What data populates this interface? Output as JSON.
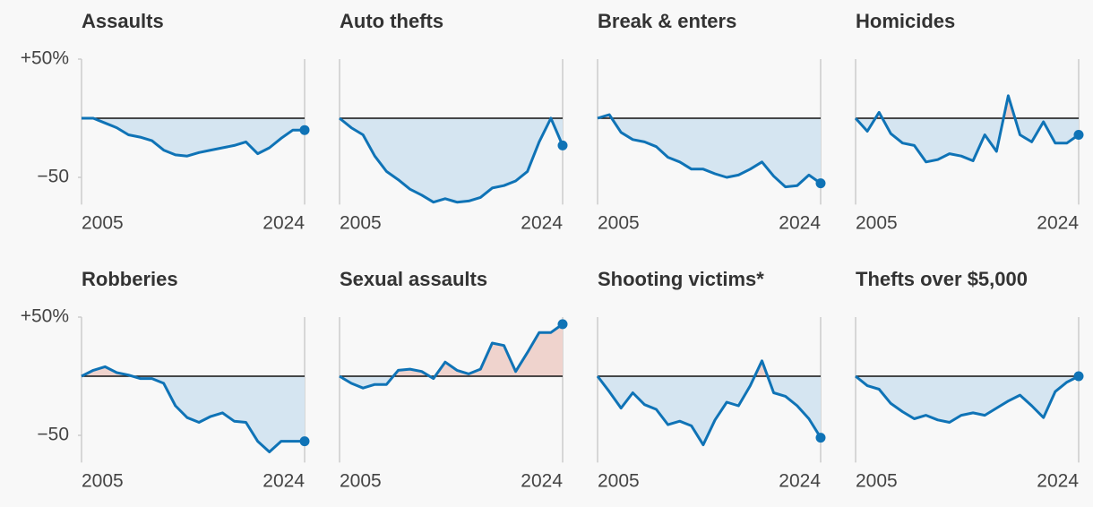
{
  "chart_data": [
    {
      "type": "line",
      "title": "Assaults",
      "x": [
        2005,
        2006,
        2007,
        2008,
        2009,
        2010,
        2011,
        2012,
        2013,
        2014,
        2015,
        2016,
        2017,
        2018,
        2019,
        2020,
        2021,
        2022,
        2023,
        2024
      ],
      "values": [
        0,
        0,
        -4,
        -8,
        -14,
        -16,
        -19,
        -27,
        -31,
        -32,
        -29,
        -27,
        -25,
        -23,
        -20,
        -30,
        -25,
        -17,
        -10,
        -10
      ],
      "color": "#0f73b6",
      "ylim": [
        -73,
        50
      ],
      "yticks": [
        {
          "value": 50,
          "label": "+50%"
        },
        {
          "value": -50,
          "label": "−50"
        }
      ],
      "xlim": [
        2005,
        2024
      ],
      "xticks": [
        2005,
        2024
      ]
    },
    {
      "type": "line",
      "title": "Auto thefts",
      "x": [
        2005,
        2006,
        2007,
        2008,
        2009,
        2010,
        2011,
        2012,
        2013,
        2014,
        2015,
        2016,
        2017,
        2018,
        2019,
        2020,
        2021,
        2022,
        2023,
        2024
      ],
      "values": [
        0,
        -8,
        -14,
        -32,
        -45,
        -52,
        -60,
        -65,
        -71,
        -68,
        -71,
        -70,
        -67,
        -59,
        -57,
        -53,
        -45,
        -20,
        0,
        -23
      ],
      "color": "#0f73b6",
      "ylim": [
        -73,
        50
      ],
      "xlim": [
        2005,
        2024
      ],
      "xticks": [
        2005,
        2024
      ]
    },
    {
      "type": "line",
      "title": "Break & enters",
      "x": [
        2005,
        2006,
        2007,
        2008,
        2009,
        2010,
        2011,
        2012,
        2013,
        2014,
        2015,
        2016,
        2017,
        2018,
        2019,
        2020,
        2021,
        2022,
        2023,
        2024
      ],
      "values": [
        0,
        3,
        -12,
        -18,
        -20,
        -24,
        -33,
        -37,
        -43,
        -43,
        -47,
        -50,
        -48,
        -43,
        -37,
        -49,
        -58,
        -57,
        -48,
        -55
      ],
      "color": "#0f73b6",
      "ylim": [
        -73,
        50
      ],
      "xlim": [
        2005,
        2024
      ],
      "xticks": [
        2005,
        2024
      ]
    },
    {
      "type": "line",
      "title": "Homicides",
      "x": [
        2005,
        2006,
        2007,
        2008,
        2009,
        2010,
        2011,
        2012,
        2013,
        2014,
        2015,
        2016,
        2017,
        2018,
        2019,
        2020,
        2021,
        2022,
        2023,
        2024
      ],
      "values": [
        0,
        -11,
        5,
        -13,
        -21,
        -23,
        -37,
        -35,
        -30,
        -32,
        -36,
        -14,
        -28,
        19,
        -14,
        -20,
        -3,
        -21,
        -21,
        -14
      ],
      "color": "#0f73b6",
      "ylim": [
        -73,
        50
      ],
      "xlim": [
        2005,
        2024
      ],
      "xticks": [
        2005,
        2024
      ]
    },
    {
      "type": "line",
      "title": "Robberies",
      "x": [
        2005,
        2006,
        2007,
        2008,
        2009,
        2010,
        2011,
        2012,
        2013,
        2014,
        2015,
        2016,
        2017,
        2018,
        2019,
        2020,
        2021,
        2022,
        2023,
        2024
      ],
      "values": [
        0,
        5,
        8,
        3,
        1,
        -2,
        -2,
        -6,
        -25,
        -35,
        -39,
        -34,
        -31,
        -38,
        -39,
        -55,
        -64,
        -55,
        -55,
        -55
      ],
      "color": "#0f73b6",
      "ylim": [
        -73,
        50
      ],
      "yticks": [
        {
          "value": 50,
          "label": "+50%"
        },
        {
          "value": -50,
          "label": "−50"
        }
      ],
      "xlim": [
        2005,
        2024
      ],
      "xticks": [
        2005,
        2024
      ]
    },
    {
      "type": "line",
      "title": "Sexual assaults",
      "x": [
        2005,
        2006,
        2007,
        2008,
        2009,
        2010,
        2011,
        2012,
        2013,
        2014,
        2015,
        2016,
        2017,
        2018,
        2019,
        2020,
        2021,
        2022,
        2023,
        2024
      ],
      "values": [
        0,
        -6,
        -10,
        -7,
        -7,
        5,
        6,
        4,
        -2,
        12,
        5,
        2,
        6,
        28,
        26,
        4,
        20,
        37,
        37,
        44
      ],
      "color": "#0f73b6",
      "ylim": [
        -73,
        50
      ],
      "xlim": [
        2005,
        2024
      ],
      "xticks": [
        2005,
        2024
      ]
    },
    {
      "type": "line",
      "title": "Shooting victims*",
      "x": [
        2005,
        2006,
        2007,
        2008,
        2009,
        2010,
        2011,
        2012,
        2013,
        2014,
        2015,
        2016,
        2017,
        2018,
        2019,
        2020,
        2021,
        2022,
        2023,
        2024
      ],
      "values": [
        0,
        -13,
        -27,
        -14,
        -24,
        -28,
        -41,
        -38,
        -42,
        -58,
        -37,
        -22,
        -25,
        -8,
        13,
        -14,
        -17,
        -25,
        -36,
        -52
      ],
      "color": "#0f73b6",
      "ylim": [
        -73,
        50
      ],
      "xlim": [
        2005,
        2024
      ],
      "xticks": [
        2005,
        2024
      ]
    },
    {
      "type": "line",
      "title": "Thefts over $5,000",
      "x": [
        2005,
        2006,
        2007,
        2008,
        2009,
        2010,
        2011,
        2012,
        2013,
        2014,
        2015,
        2016,
        2017,
        2018,
        2019,
        2020,
        2021,
        2022,
        2023,
        2024
      ],
      "values": [
        0,
        -8,
        -11,
        -23,
        -30,
        -36,
        -33,
        -37,
        -39,
        -33,
        -31,
        -33,
        -27,
        -21,
        -16,
        -25,
        -35,
        -13,
        -5,
        0
      ],
      "color": "#0f73b6",
      "ylim": [
        -73,
        50
      ],
      "xlim": [
        2005,
        2024
      ],
      "xticks": [
        2005,
        2024
      ]
    }
  ]
}
